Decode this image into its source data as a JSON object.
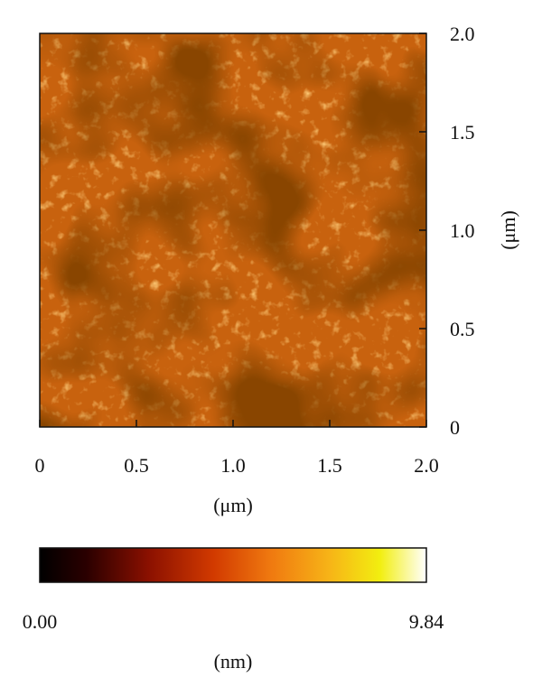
{
  "chart_data": {
    "type": "heatmap",
    "title": "",
    "xlabel": "(μm)",
    "ylabel": "(μm)",
    "xlim": [
      0,
      2.0
    ],
    "ylim": [
      0,
      2.0
    ],
    "x_ticks": [
      "0",
      "0.5",
      "1.0",
      "1.5",
      "2.0"
    ],
    "y_ticks": [
      "0",
      "0.5",
      "1.0",
      "1.5",
      "2.0"
    ],
    "colorbar": {
      "min_label": "0.00",
      "max_label": "9.84",
      "min": 0.0,
      "max": 9.84,
      "unit": "(nm)",
      "colormap": [
        "#000000",
        "#2a0000",
        "#8a1000",
        "#d23a00",
        "#f07a10",
        "#f7b417",
        "#f2ee10",
        "#ffffff"
      ]
    },
    "grid": false
  }
}
